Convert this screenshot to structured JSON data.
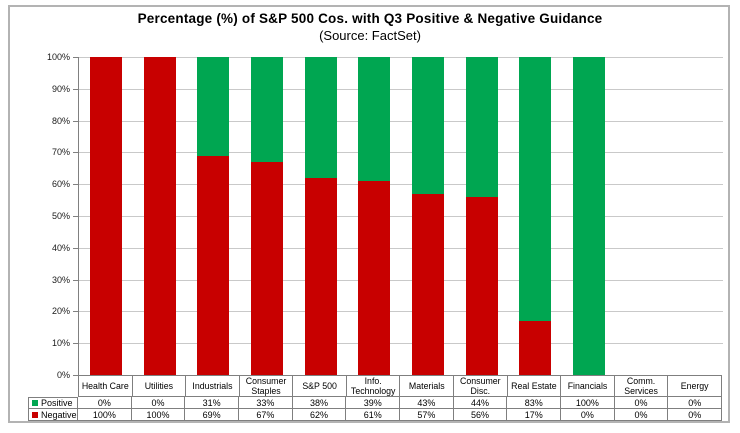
{
  "chart_data": {
    "type": "bar",
    "stacked": true,
    "title": "Percentage (%) of S&P 500 Cos. with Q3 Positive & Negative Guidance",
    "subtitle": "(Source: FactSet)",
    "categories": [
      "Health Care",
      "Utilities",
      "Industrials",
      "Consumer Staples",
      "S&P 500",
      "Info. Technology",
      "Materials",
      "Consumer Disc.",
      "Real Estate",
      "Financials",
      "Comm. Services",
      "Energy"
    ],
    "series": [
      {
        "name": "Positive",
        "color": "#00a651",
        "values": [
          0,
          0,
          31,
          33,
          38,
          39,
          43,
          44,
          83,
          100,
          0,
          0
        ]
      },
      {
        "name": "Negative",
        "color": "#c80000",
        "values": [
          100,
          100,
          69,
          67,
          62,
          61,
          57,
          56,
          17,
          0,
          0,
          0
        ]
      }
    ],
    "xlabel": "",
    "ylabel": "",
    "ylim": [
      0,
      100
    ],
    "ytick_step": 10,
    "ytick_suffix": "%",
    "value_suffix": "%",
    "grid": true,
    "legend_position": "table-left"
  },
  "colors": {
    "positive": "#00a651",
    "negative": "#c80000",
    "gridline": "#c9c9c9",
    "axis": "#808080",
    "table_border": "#7f7f7f",
    "figure_border": "#b3b3b3"
  }
}
